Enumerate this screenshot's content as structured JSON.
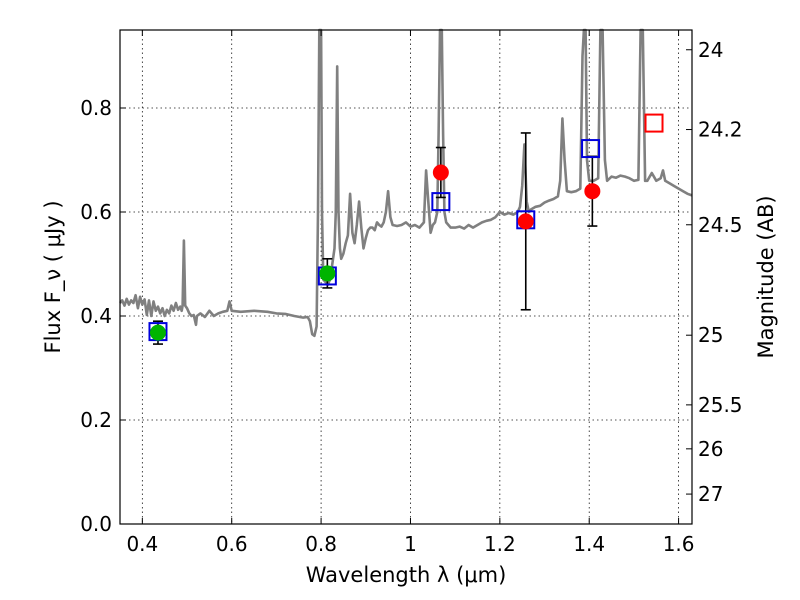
{
  "chart_data": {
    "type": "scatter",
    "title": "",
    "xlabel": "Wavelength  λ (μm)",
    "ylabel": "Flux  F_ν  ( μJy )",
    "y2label": "Magnitude (AB)",
    "xlim": [
      0.35,
      1.63
    ],
    "ylim": [
      0.0,
      0.95
    ],
    "grid": true,
    "x_ticks": [
      {
        "value": 0.4,
        "label": "0.4"
      },
      {
        "value": 0.6,
        "label": "0.6"
      },
      {
        "value": 0.8,
        "label": "0.8"
      },
      {
        "value": 1.0,
        "label": "1"
      },
      {
        "value": 1.2,
        "label": "1.2"
      },
      {
        "value": 1.4,
        "label": "1.4"
      },
      {
        "value": 1.6,
        "label": "1.6"
      }
    ],
    "y_ticks": [
      {
        "value": 0.0,
        "label": "0.0"
      },
      {
        "value": 0.2,
        "label": "0.2"
      },
      {
        "value": 0.4,
        "label": "0.4"
      },
      {
        "value": 0.6,
        "label": "0.6"
      },
      {
        "value": 0.8,
        "label": "0.8"
      }
    ],
    "y2_ticks": [
      {
        "mag": 24,
        "label": "24"
      },
      {
        "mag": 24.2,
        "label": "24.2"
      },
      {
        "mag": 24.5,
        "label": "24.5"
      },
      {
        "mag": 25,
        "label": "25"
      },
      {
        "mag": 25.5,
        "label": "25.5"
      },
      {
        "mag": 26,
        "label": "26"
      },
      {
        "mag": 27,
        "label": "27"
      }
    ],
    "colors": {
      "spectrum": "#808080",
      "green_points": "#00b400",
      "red_points": "#ff0000",
      "model_squares_blue": "#0000dd",
      "model_square_red": "#ff0000",
      "errorbar": "#000000"
    },
    "series": [
      {
        "kind": "line",
        "points": [
          [
            0.35,
            0.425
          ],
          [
            0.355,
            0.43
          ],
          [
            0.36,
            0.42
          ],
          [
            0.365,
            0.433
          ],
          [
            0.37,
            0.422
          ],
          [
            0.375,
            0.43
          ],
          [
            0.38,
            0.425
          ],
          [
            0.385,
            0.44
          ],
          [
            0.39,
            0.415
          ],
          [
            0.395,
            0.437
          ],
          [
            0.4,
            0.422
          ],
          [
            0.405,
            0.432
          ],
          [
            0.41,
            0.402
          ],
          [
            0.415,
            0.43
          ],
          [
            0.42,
            0.4
          ],
          [
            0.425,
            0.428
          ],
          [
            0.43,
            0.41
          ],
          [
            0.435,
            0.418
          ],
          [
            0.44,
            0.405
          ],
          [
            0.445,
            0.415
          ],
          [
            0.45,
            0.4
          ],
          [
            0.455,
            0.412
          ],
          [
            0.46,
            0.405
          ],
          [
            0.465,
            0.42
          ],
          [
            0.47,
            0.41
          ],
          [
            0.475,
            0.425
          ],
          [
            0.48,
            0.412
          ],
          [
            0.485,
            0.418
          ],
          [
            0.488,
            0.41
          ],
          [
            0.49,
            0.42
          ],
          [
            0.493,
            0.545
          ],
          [
            0.496,
            0.42
          ],
          [
            0.5,
            0.415
          ],
          [
            0.505,
            0.405
          ],
          [
            0.51,
            0.4
          ],
          [
            0.515,
            0.402
          ],
          [
            0.52,
            0.383
          ],
          [
            0.522,
            0.4
          ],
          [
            0.53,
            0.405
          ],
          [
            0.54,
            0.398
          ],
          [
            0.55,
            0.41
          ],
          [
            0.56,
            0.4
          ],
          [
            0.57,
            0.405
          ],
          [
            0.58,
            0.408
          ],
          [
            0.59,
            0.41
          ],
          [
            0.595,
            0.428
          ],
          [
            0.6,
            0.41
          ],
          [
            0.62,
            0.408
          ],
          [
            0.65,
            0.41
          ],
          [
            0.68,
            0.408
          ],
          [
            0.7,
            0.405
          ],
          [
            0.72,
            0.404
          ],
          [
            0.74,
            0.4
          ],
          [
            0.76,
            0.397
          ],
          [
            0.77,
            0.398
          ],
          [
            0.775,
            0.39
          ],
          [
            0.78,
            0.365
          ],
          [
            0.785,
            0.362
          ],
          [
            0.79,
            0.38
          ],
          [
            0.793,
            0.6
          ],
          [
            0.796,
            0.95
          ],
          [
            0.8,
            0.95
          ],
          [
            0.802,
            0.6
          ],
          [
            0.805,
            0.47
          ],
          [
            0.81,
            0.465
          ],
          [
            0.815,
            0.46
          ],
          [
            0.82,
            0.47
          ],
          [
            0.825,
            0.5
          ],
          [
            0.83,
            0.53
          ],
          [
            0.833,
            0.6
          ],
          [
            0.836,
            0.88
          ],
          [
            0.839,
            0.6
          ],
          [
            0.842,
            0.53
          ],
          [
            0.845,
            0.51
          ],
          [
            0.85,
            0.52
          ],
          [
            0.855,
            0.54
          ],
          [
            0.86,
            0.555
          ],
          [
            0.865,
            0.635
          ],
          [
            0.87,
            0.56
          ],
          [
            0.875,
            0.54
          ],
          [
            0.88,
            0.575
          ],
          [
            0.885,
            0.62
          ],
          [
            0.89,
            0.57
          ],
          [
            0.895,
            0.53
          ],
          [
            0.9,
            0.55
          ],
          [
            0.905,
            0.565
          ],
          [
            0.91,
            0.57
          ],
          [
            0.915,
            0.57
          ],
          [
            0.92,
            0.565
          ],
          [
            0.925,
            0.58
          ],
          [
            0.93,
            0.575
          ],
          [
            0.935,
            0.572
          ],
          [
            0.94,
            0.58
          ],
          [
            0.945,
            0.6
          ],
          [
            0.95,
            0.64
          ],
          [
            0.955,
            0.59
          ],
          [
            0.96,
            0.575
          ],
          [
            0.97,
            0.573
          ],
          [
            0.98,
            0.575
          ],
          [
            0.99,
            0.58
          ],
          [
            1.0,
            0.572
          ],
          [
            1.01,
            0.575
          ],
          [
            1.02,
            0.57
          ],
          [
            1.03,
            0.58
          ],
          [
            1.035,
            0.68
          ],
          [
            1.04,
            0.62
          ],
          [
            1.045,
            0.56
          ],
          [
            1.05,
            0.575
          ],
          [
            1.055,
            0.58
          ],
          [
            1.06,
            0.6
          ],
          [
            1.063,
            0.75
          ],
          [
            1.066,
            0.95
          ],
          [
            1.07,
            0.95
          ],
          [
            1.073,
            0.75
          ],
          [
            1.076,
            0.6
          ],
          [
            1.08,
            0.58
          ],
          [
            1.09,
            0.57
          ],
          [
            1.1,
            0.57
          ],
          [
            1.11,
            0.572
          ],
          [
            1.12,
            0.568
          ],
          [
            1.13,
            0.575
          ],
          [
            1.14,
            0.57
          ],
          [
            1.15,
            0.575
          ],
          [
            1.16,
            0.58
          ],
          [
            1.17,
            0.583
          ],
          [
            1.18,
            0.585
          ],
          [
            1.19,
            0.59
          ],
          [
            1.2,
            0.6
          ],
          [
            1.21,
            0.595
          ],
          [
            1.22,
            0.598
          ],
          [
            1.23,
            0.595
          ],
          [
            1.24,
            0.6
          ],
          [
            1.245,
            0.61
          ],
          [
            1.25,
            0.65
          ],
          [
            1.255,
            0.73
          ],
          [
            1.26,
            0.62
          ],
          [
            1.265,
            0.6
          ],
          [
            1.27,
            0.605
          ],
          [
            1.28,
            0.61
          ],
          [
            1.29,
            0.612
          ],
          [
            1.3,
            0.618
          ],
          [
            1.31,
            0.622
          ],
          [
            1.32,
            0.625
          ],
          [
            1.33,
            0.63
          ],
          [
            1.335,
            0.66
          ],
          [
            1.34,
            0.78
          ],
          [
            1.345,
            0.7
          ],
          [
            1.35,
            0.64
          ],
          [
            1.36,
            0.638
          ],
          [
            1.37,
            0.64
          ],
          [
            1.38,
            0.645
          ],
          [
            1.385,
            0.9
          ],
          [
            1.388,
            0.95
          ],
          [
            1.392,
            0.95
          ],
          [
            1.395,
            0.7
          ],
          [
            1.4,
            0.66
          ],
          [
            1.41,
            0.66
          ],
          [
            1.42,
            0.665
          ],
          [
            1.425,
            0.95
          ],
          [
            1.43,
            0.95
          ],
          [
            1.435,
            0.7
          ],
          [
            1.44,
            0.66
          ],
          [
            1.45,
            0.668
          ],
          [
            1.46,
            0.666
          ],
          [
            1.47,
            0.67
          ],
          [
            1.48,
            0.668
          ],
          [
            1.49,
            0.665
          ],
          [
            1.5,
            0.66
          ],
          [
            1.51,
            0.662
          ],
          [
            1.515,
            0.95
          ],
          [
            1.52,
            0.95
          ],
          [
            1.525,
            0.66
          ],
          [
            1.53,
            0.66
          ],
          [
            1.54,
            0.675
          ],
          [
            1.55,
            0.66
          ],
          [
            1.56,
            0.665
          ],
          [
            1.565,
            0.68
          ],
          [
            1.57,
            0.66
          ],
          [
            1.58,
            0.655
          ],
          [
            1.59,
            0.65
          ],
          [
            1.6,
            0.645
          ],
          [
            1.61,
            0.64
          ],
          [
            1.62,
            0.635
          ],
          [
            1.63,
            0.632
          ]
        ]
      },
      {
        "kind": "points",
        "color": "green_points",
        "points": [
          {
            "x": 0.435,
            "y": 0.368,
            "err": 0.022
          },
          {
            "x": 0.814,
            "y": 0.482,
            "err": 0.028
          }
        ]
      },
      {
        "kind": "points",
        "color": "red_points",
        "points": [
          {
            "x": 1.068,
            "y": 0.676,
            "err": 0.048
          },
          {
            "x": 1.258,
            "y": 0.582,
            "err": 0.17
          },
          {
            "x": 1.407,
            "y": 0.64,
            "err": 0.067
          }
        ]
      },
      {
        "kind": "model_squares",
        "points": [
          {
            "x": 0.435,
            "y": 0.37,
            "color": "model_squares_blue"
          },
          {
            "x": 0.814,
            "y": 0.477,
            "color": "model_squares_blue"
          },
          {
            "x": 1.068,
            "y": 0.62,
            "color": "model_squares_blue"
          },
          {
            "x": 1.258,
            "y": 0.585,
            "color": "model_squares_blue"
          },
          {
            "x": 1.403,
            "y": 0.722,
            "color": "model_squares_blue"
          },
          {
            "x": 1.545,
            "y": 0.771,
            "color": "model_square_red"
          }
        ]
      }
    ]
  }
}
